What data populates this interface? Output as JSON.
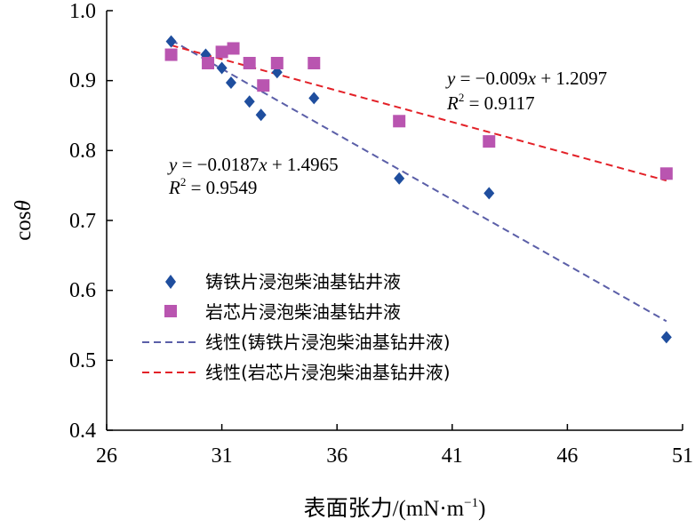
{
  "chart_data": {
    "type": "scatter",
    "title": "",
    "xlabel": "表面张力/(mN·m⁻¹)",
    "ylabel": "cosθ",
    "xlim": [
      26,
      51
    ],
    "ylim": [
      0.4,
      1.0
    ],
    "xticks": [
      26,
      31,
      36,
      41,
      46,
      51
    ],
    "yticks": [
      0.4,
      0.5,
      0.6,
      0.7,
      0.8,
      0.9,
      1.0
    ],
    "ytick_labels": [
      "0.4",
      "0.5",
      "0.6",
      "0.7",
      "0.8",
      "0.9",
      "1.0"
    ],
    "grid": false,
    "legend_position": "left-lower",
    "series": [
      {
        "name": "铸铁片浸泡柴油基钻井液",
        "marker": "diamond",
        "color": "#1F4E9E",
        "x": [
          28.8,
          30.3,
          31.0,
          31.4,
          32.2,
          32.7,
          33.4,
          35.0,
          38.7,
          42.6,
          50.3
        ],
        "y": [
          0.956,
          0.937,
          0.918,
          0.897,
          0.87,
          0.851,
          0.912,
          0.875,
          0.76,
          0.739,
          0.533
        ]
      },
      {
        "name": "岩芯片浸泡柴油基钻井液",
        "marker": "square",
        "color": "#B955B0",
        "x": [
          28.8,
          30.4,
          31.0,
          31.5,
          32.2,
          32.8,
          33.4,
          35.0,
          38.7,
          42.6,
          50.3
        ],
        "y": [
          0.937,
          0.925,
          0.941,
          0.946,
          0.925,
          0.893,
          0.925,
          0.925,
          0.842,
          0.813,
          0.767
        ]
      }
    ],
    "trendlines": [
      {
        "name": "线性(铸铁片浸泡柴油基钻井液)",
        "color": "#5B5FA8",
        "slope": -0.0187,
        "intercept": 1.4965,
        "x_range": [
          28.8,
          50.3
        ],
        "equation_text": "y = −0.0187x + 1.4965",
        "r2_text": "R² = 0.9549"
      },
      {
        "name": "线性(岩芯片浸泡柴油基钻井液)",
        "color": "#E32128",
        "slope": -0.009,
        "intercept": 1.2097,
        "x_range": [
          28.8,
          50.3
        ],
        "equation_text": "y = −0.009x + 1.2097",
        "r2_text": "R² = 0.9117"
      }
    ]
  },
  "labels": {
    "eq1_y": "y",
    "eq1_mid": " = −0.0187",
    "eq1_x": "x",
    "eq1_end": " + 1.4965",
    "r2_1_R": "R",
    "r2_1_sup": "2",
    "r2_1_val": " = 0.9549",
    "eq2_y": "y",
    "eq2_mid": " = −0.009",
    "eq2_x": "x",
    "eq2_end": " + 1.2097",
    "r2_2_R": "R",
    "r2_2_sup": "2",
    "r2_2_val": " = 0.9117",
    "xlabel_main": "表面张力/(mN·m",
    "xlabel_sup": "−1",
    "xlabel_close": ")",
    "ylabel_cos": "cos",
    "ylabel_theta": "θ"
  }
}
